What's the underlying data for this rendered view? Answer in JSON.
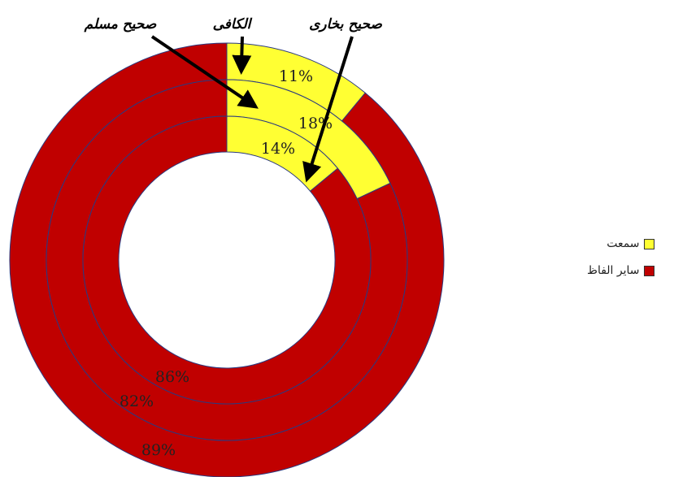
{
  "chart_data": {
    "type": "donut",
    "rings": [
      {
        "name": "الکافی",
        "values": [
          11,
          89
        ],
        "labels": [
          "11%",
          "89%"
        ]
      },
      {
        "name": "صحیح مسلم",
        "values": [
          18,
          82
        ],
        "labels": [
          "18%",
          "82%"
        ]
      },
      {
        "name": "صحیح بخاری",
        "values": [
          14,
          86
        ],
        "labels": [
          "14%",
          "86%"
        ]
      }
    ],
    "categories": [
      "سمعت",
      "سایر الفاظ"
    ],
    "colors": [
      "#ffff33",
      "#c00000"
    ],
    "legend": {
      "position": "right"
    },
    "annotations": [
      "صحیح مسلم",
      "الکافی",
      "صحیح بخاری"
    ]
  }
}
